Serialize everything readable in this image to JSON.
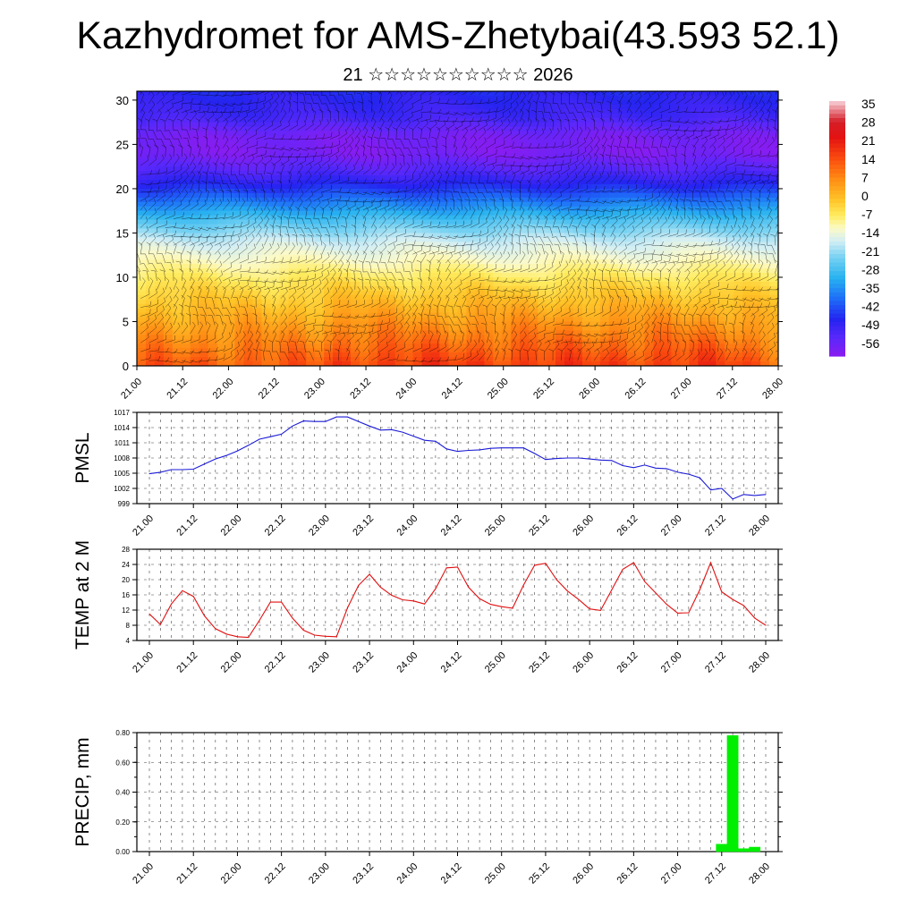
{
  "title": "Kazhydromet for AMS-Zhetybai(43.593 52.1)",
  "subtitle": "21 ☆☆☆☆☆☆☆☆☆☆ 2026",
  "colors": {
    "pmsl": "#1a1ad6",
    "temp": "#e01010",
    "precip": "#00ee00",
    "grid": "#444444",
    "wind": "#000000"
  },
  "chart_data": [
    {
      "id": "cross_section",
      "type": "heatmap",
      "title": "",
      "xlabel": "",
      "ylabel": "",
      "x_tick_labels": [
        "21.00",
        "21.12",
        "22.00",
        "22.12",
        "23.00",
        "23.12",
        "24.00",
        "24.12",
        "25.00",
        "25.12",
        "26.00",
        "26.12",
        "27.00",
        "27.12",
        "28.00"
      ],
      "xlim": [
        0,
        14
      ],
      "y_ticks": [
        0,
        5,
        10,
        15,
        20,
        25,
        30
      ],
      "ylim": [
        0,
        31
      ],
      "colorbar": {
        "labels": [
          "35",
          "28",
          "21",
          "14",
          "7",
          "0",
          "-7",
          "-14",
          "-21",
          "-28",
          "-35",
          "-42",
          "-49",
          "-56"
        ],
        "range": [
          -60,
          38
        ]
      },
      "profile_height": [
        0,
        3,
        6,
        9,
        12,
        14,
        16,
        18,
        20,
        22,
        24,
        26,
        28,
        31
      ],
      "profile_temp": [
        14,
        8,
        2,
        -4,
        -11,
        -16,
        -24,
        -34,
        -44,
        -52,
        -58,
        -57,
        -50,
        -46
      ],
      "note": "Wind barbs overlaid across the section"
    },
    {
      "id": "pmsl",
      "type": "line",
      "ylabel": "PMSL",
      "x_tick_labels": [
        "21.00",
        "21.12",
        "22.00",
        "22.12",
        "23.00",
        "23.12",
        "24.00",
        "24.12",
        "25.00",
        "25.12",
        "26.00",
        "26.12",
        "27.00",
        "27.12",
        "28.00"
      ],
      "y_ticks": [
        999,
        1002,
        1005,
        1008,
        1011,
        1014,
        1017
      ],
      "ylim": [
        999,
        1017
      ],
      "x": [
        0,
        0.25,
        0.5,
        0.75,
        1,
        1.25,
        1.5,
        1.75,
        2,
        2.25,
        2.5,
        2.75,
        3,
        3.25,
        3.5,
        3.75,
        4,
        4.25,
        4.5,
        4.75,
        5,
        5.25,
        5.5,
        5.75,
        6,
        6.25,
        6.5,
        6.75,
        7,
        7.25,
        7.5,
        7.75,
        8,
        8.25,
        8.5,
        8.75,
        9,
        9.25,
        9.5,
        9.75,
        10,
        10.25,
        10.5,
        10.75,
        11,
        11.25,
        11.5,
        11.75,
        12,
        12.25,
        12.5,
        12.75,
        13,
        13.25,
        13.5,
        13.75,
        14
      ],
      "values": [
        1004.9,
        1005.2,
        1005.7,
        1005.7,
        1005.8,
        1006.8,
        1007.8,
        1008.5,
        1009.4,
        1010.5,
        1011.7,
        1012.2,
        1012.7,
        1014.3,
        1015.3,
        1015.2,
        1015.2,
        1016.1,
        1016.1,
        1015.2,
        1014.3,
        1013.5,
        1013.6,
        1013.1,
        1012.3,
        1011.5,
        1011.3,
        1009.8,
        1009.3,
        1009.5,
        1009.6,
        1009.9,
        1010.0,
        1010.0,
        1010.0,
        1008.9,
        1007.7,
        1007.9,
        1008.0,
        1008.0,
        1007.8,
        1007.6,
        1007.5,
        1006.5,
        1006.1,
        1006.6,
        1006.0,
        1005.9,
        1005.2,
        1004.8,
        1004.1,
        1001.7,
        1002.0,
        999.9,
        1000.8,
        1000.6,
        1000.8
      ]
    },
    {
      "id": "temp2m",
      "type": "line",
      "ylabel": "TEMP at 2 M",
      "x_tick_labels": [
        "21.00",
        "21.12",
        "22.00",
        "22.12",
        "23.00",
        "23.12",
        "24.00",
        "24.12",
        "25.00",
        "25.12",
        "26.00",
        "26.12",
        "27.00",
        "27.12",
        "28.00"
      ],
      "y_ticks": [
        4,
        8,
        12,
        16,
        20,
        24,
        28
      ],
      "ylim": [
        4,
        28
      ],
      "x": [
        0,
        0.25,
        0.5,
        0.75,
        1,
        1.25,
        1.5,
        1.75,
        2,
        2.25,
        2.5,
        2.75,
        3,
        3.25,
        3.5,
        3.75,
        4,
        4.25,
        4.5,
        4.75,
        5,
        5.25,
        5.5,
        5.75,
        6,
        6.25,
        6.5,
        6.75,
        7,
        7.25,
        7.5,
        7.75,
        8,
        8.25,
        8.5,
        8.75,
        9,
        9.25,
        9.5,
        9.75,
        10,
        10.25,
        10.5,
        10.75,
        11,
        11.25,
        11.5,
        11.75,
        12,
        12.25,
        12.5,
        12.75,
        13,
        13.25,
        13.5,
        13.75,
        14
      ],
      "values": [
        11.0,
        8.2,
        13.6,
        17.1,
        15.6,
        10.5,
        7.1,
        5.7,
        5.0,
        4.8,
        9.3,
        14.1,
        14.1,
        9.9,
        6.7,
        5.4,
        5.1,
        5.0,
        12.6,
        18.5,
        21.4,
        18.0,
        15.9,
        14.7,
        14.4,
        13.6,
        17.6,
        23.1,
        23.3,
        18.0,
        15.0,
        13.5,
        12.9,
        12.5,
        18.6,
        23.8,
        24.3,
        20.0,
        17.0,
        14.8,
        12.3,
        11.9,
        17.3,
        22.7,
        24.5,
        19.5,
        16.5,
        13.5,
        11.2,
        11.3,
        17.3,
        24.5,
        16.8,
        14.8,
        13.2,
        9.9,
        8.0
      ]
    },
    {
      "id": "precip",
      "type": "bar",
      "ylabel": "PRECIP, mm",
      "x_tick_labels": [
        "21.00",
        "21.12",
        "22.00",
        "22.12",
        "23.00",
        "23.12",
        "24.00",
        "24.12",
        "25.00",
        "25.12",
        "26.00",
        "26.12",
        "27.00",
        "27.12",
        "28.00"
      ],
      "y_tick_labels": [
        "0.00",
        "0.20",
        "0.40",
        "0.60",
        "0.80"
      ],
      "ylim": [
        0,
        0.8
      ],
      "bar_width": 0.25,
      "x": [
        13.0,
        13.25,
        13.5,
        13.75
      ],
      "values": [
        0.05,
        0.78,
        0.02,
        0.03
      ]
    }
  ]
}
